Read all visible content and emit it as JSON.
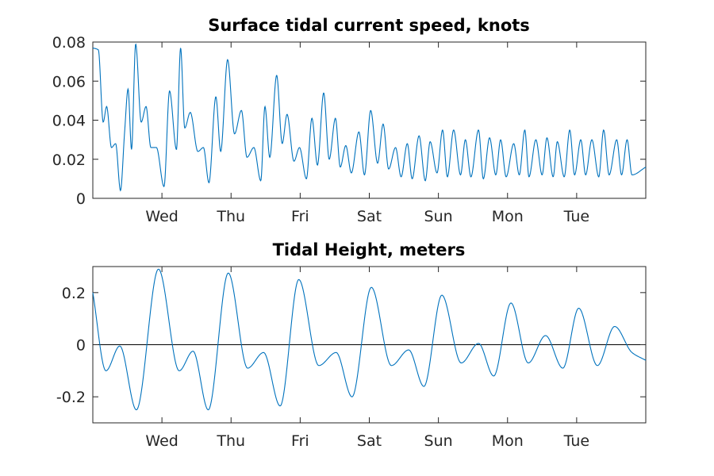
{
  "chart_data": [
    {
      "type": "line",
      "title": "Surface tidal current speed, knots",
      "xlabel": "",
      "ylabel": "",
      "xlim_days": [
        0,
        8
      ],
      "ylim": [
        0,
        0.08
      ],
      "yticks": [
        0,
        0.02,
        0.04,
        0.06,
        0.08
      ],
      "ytick_labels": [
        "0",
        "0.02",
        "0.04",
        "0.06",
        "0.08"
      ],
      "xtick_positions_days": [
        1,
        2,
        3,
        4,
        5,
        6,
        7
      ],
      "xtick_labels": [
        "Wed",
        "Thu",
        "Fri",
        "Sat",
        "Sun",
        "Mon",
        "Tue"
      ],
      "grid": false,
      "series_color": "#0072bd",
      "series": [
        {
          "x": [
            0.0,
            0.08,
            0.15,
            0.2,
            0.27,
            0.33,
            0.4,
            0.46,
            0.51,
            0.56,
            0.62,
            0.7,
            0.77,
            0.84,
            0.92,
            1.03,
            1.11,
            1.21,
            1.27,
            1.33,
            1.41,
            1.52,
            1.6,
            1.68,
            1.78,
            1.85,
            1.95,
            2.05,
            2.15,
            2.23,
            2.33,
            2.43,
            2.49,
            2.56,
            2.66,
            2.74,
            2.81,
            2.91,
            2.99,
            3.09,
            3.17,
            3.25,
            3.34,
            3.42,
            3.51,
            3.58,
            3.66,
            3.74,
            3.85,
            3.93,
            4.02,
            4.12,
            4.2,
            4.28,
            4.38,
            4.46,
            4.55,
            4.62,
            4.72,
            4.81,
            4.88,
            4.98,
            5.06,
            5.13,
            5.22,
            5.32,
            5.39,
            5.47,
            5.58,
            5.65,
            5.74,
            5.83,
            5.9,
            5.98,
            6.09,
            6.17,
            6.25,
            6.31,
            6.41,
            6.5,
            6.57,
            6.66,
            6.72,
            6.82,
            6.9,
            6.97,
            7.06,
            7.13,
            7.22,
            7.32,
            7.39,
            7.47,
            7.58,
            7.65,
            7.73,
            7.8,
            8.0
          ],
          "y": [
            0.077,
            0.076,
            0.039,
            0.047,
            0.026,
            0.028,
            0.004,
            0.034,
            0.056,
            0.025,
            0.079,
            0.039,
            0.047,
            0.026,
            0.026,
            0.006,
            0.055,
            0.025,
            0.077,
            0.036,
            0.044,
            0.024,
            0.026,
            0.008,
            0.052,
            0.024,
            0.071,
            0.033,
            0.045,
            0.021,
            0.026,
            0.009,
            0.047,
            0.021,
            0.063,
            0.028,
            0.043,
            0.019,
            0.026,
            0.01,
            0.041,
            0.017,
            0.054,
            0.02,
            0.041,
            0.016,
            0.027,
            0.013,
            0.034,
            0.012,
            0.045,
            0.018,
            0.038,
            0.015,
            0.026,
            0.011,
            0.028,
            0.01,
            0.032,
            0.009,
            0.029,
            0.013,
            0.035,
            0.011,
            0.035,
            0.012,
            0.03,
            0.011,
            0.035,
            0.01,
            0.031,
            0.012,
            0.03,
            0.011,
            0.028,
            0.012,
            0.035,
            0.011,
            0.03,
            0.012,
            0.031,
            0.011,
            0.029,
            0.011,
            0.035,
            0.012,
            0.03,
            0.012,
            0.03,
            0.011,
            0.035,
            0.012,
            0.03,
            0.012,
            0.03,
            0.012,
            0.016
          ]
        }
      ]
    },
    {
      "type": "line",
      "title": "Tidal Height, meters",
      "xlabel": "",
      "ylabel": "",
      "xlim_days": [
        0,
        8
      ],
      "ylim": [
        -0.3,
        0.3
      ],
      "yticks": [
        -0.2,
        0,
        0.2
      ],
      "ytick_labels": [
        "-0.2",
        "0",
        "0.2"
      ],
      "xtick_positions_days": [
        1,
        2,
        3,
        4,
        5,
        6,
        7
      ],
      "xtick_labels": [
        "Wed",
        "Thu",
        "Fri",
        "Sat",
        "Sun",
        "Mon",
        "Tue"
      ],
      "grid": false,
      "zero_line": true,
      "series_color": "#0072bd",
      "series": [
        {
          "x": [
            0.0,
            0.19,
            0.39,
            0.63,
            0.95,
            1.25,
            1.45,
            1.67,
            1.96,
            2.24,
            2.47,
            2.71,
            2.98,
            3.27,
            3.52,
            3.75,
            4.03,
            4.32,
            4.57,
            4.79,
            5.05,
            5.33,
            5.58,
            5.8,
            6.05,
            6.3,
            6.55,
            6.8,
            7.03,
            7.3,
            7.55,
            7.8,
            8.0
          ],
          "y": [
            0.2,
            -0.1,
            -0.005,
            -0.25,
            0.29,
            -0.1,
            -0.025,
            -0.25,
            0.275,
            -0.09,
            -0.03,
            -0.235,
            0.25,
            -0.08,
            -0.03,
            -0.2,
            0.22,
            -0.08,
            -0.02,
            -0.16,
            0.19,
            -0.07,
            0.005,
            -0.12,
            0.16,
            -0.07,
            0.035,
            -0.09,
            0.14,
            -0.08,
            0.07,
            -0.03,
            -0.06
          ]
        }
      ]
    }
  ]
}
